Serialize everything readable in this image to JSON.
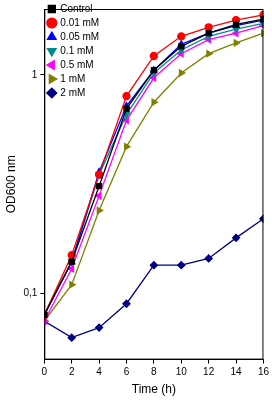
{
  "chart_data": {
    "type": "line",
    "x_label": "Time (h)",
    "y_label": "OD600 nm",
    "x": [
      0,
      2,
      4,
      6,
      8,
      10,
      12,
      14,
      16
    ],
    "series": [
      {
        "name": "Control",
        "color": "#000000",
        "marker": "square",
        "values": [
          0.08,
          0.14,
          0.31,
          0.7,
          1.05,
          1.35,
          1.55,
          1.7,
          1.8
        ]
      },
      {
        "name": "0.01 mM",
        "color": "#ff0000",
        "marker": "circle",
        "values": [
          0.08,
          0.15,
          0.35,
          0.8,
          1.22,
          1.5,
          1.65,
          1.78,
          1.88
        ]
      },
      {
        "name": "0.05 mM",
        "color": "#0000ff",
        "marker": "triangle-up",
        "values": [
          0.08,
          0.14,
          0.36,
          0.72,
          1.05,
          1.38,
          1.55,
          1.68,
          1.78
        ]
      },
      {
        "name": "0.1 mM",
        "color": "#008b8b",
        "marker": "triangle-down",
        "values": [
          0.08,
          0.14,
          0.35,
          0.66,
          1.02,
          1.3,
          1.5,
          1.62,
          1.72
        ]
      },
      {
        "name": "0.5 mM",
        "color": "#ff00ff",
        "marker": "triangle-left",
        "values": [
          0.075,
          0.13,
          0.28,
          0.62,
          0.97,
          1.25,
          1.45,
          1.55,
          1.68
        ]
      },
      {
        "name": "1 mM",
        "color": "#808000",
        "marker": "triangle-right",
        "values": [
          0.075,
          0.11,
          0.24,
          0.47,
          0.75,
          1.02,
          1.25,
          1.4,
          1.55
        ]
      },
      {
        "name": "2 mM",
        "color": "#000080",
        "marker": "diamond",
        "values": [
          0.075,
          0.063,
          0.07,
          0.09,
          0.135,
          0.135,
          0.145,
          0.18,
          0.22
        ]
      }
    ],
    "xlim": [
      0,
      16
    ],
    "xticks": [
      0,
      2,
      4,
      6,
      8,
      10,
      12,
      14,
      16
    ],
    "ylim": [
      0.05,
      2
    ],
    "yticks": [
      {
        "value": 0.1,
        "label": "0,1"
      },
      1
    ],
    "log": "y",
    "grid": false,
    "legend": "upper left"
  }
}
